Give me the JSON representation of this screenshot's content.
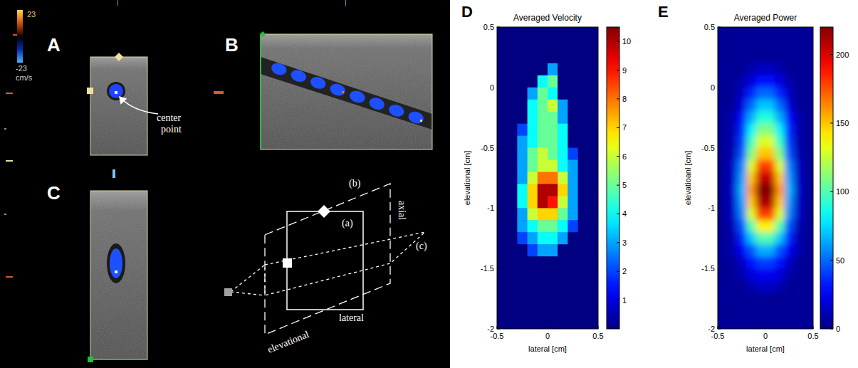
{
  "figure": {
    "color_scale": {
      "max": 23,
      "min": -23,
      "unit": "cm/s"
    },
    "panels": [
      {
        "letter": "A",
        "annotation": "center point"
      },
      {
        "letter": "B"
      },
      {
        "letter": "C"
      }
    ],
    "diagram": {
      "plane_labels": [
        "(a)",
        "(b)",
        "(c)"
      ],
      "axis_labels": [
        "axial",
        "lateral",
        "elevational"
      ]
    }
  },
  "chart_data": [
    {
      "type": "heatmap",
      "panel_label": "D",
      "title": "Averaged Velocity",
      "x_label": "lateral [cm]",
      "y_label": "elevational [cm]",
      "x": [
        -0.45,
        -0.35,
        -0.25,
        -0.15,
        -0.05,
        0.05,
        0.15,
        0.25,
        0.35,
        0.45
      ],
      "y": [
        0.45,
        0.35,
        0.25,
        0.15,
        0.05,
        -0.05,
        -0.15,
        -0.25,
        -0.35,
        -0.45,
        -0.55,
        -0.65,
        -0.75,
        -0.85,
        -0.95,
        -1.05,
        -1.15,
        -1.25,
        -1.35,
        -1.45,
        -1.55,
        -1.65,
        -1.75,
        -1.85,
        -1.95
      ],
      "cells": [
        [
          0,
          0,
          0,
          0,
          0,
          0,
          0,
          0,
          0,
          0
        ],
        [
          0,
          0,
          0,
          0,
          0,
          0,
          0,
          0,
          0,
          0
        ],
        [
          0,
          0,
          0,
          0,
          0,
          0,
          0,
          0,
          0,
          0
        ],
        [
          0,
          0,
          0,
          0,
          0,
          3,
          0,
          0,
          0,
          0
        ],
        [
          0,
          0,
          0,
          0,
          4,
          5,
          0,
          0,
          0,
          0
        ],
        [
          0,
          0,
          0,
          3,
          5,
          4,
          0,
          0,
          0,
          0
        ],
        [
          0,
          0,
          0,
          4,
          5,
          6,
          3,
          0,
          0,
          0
        ],
        [
          0,
          0,
          0,
          4,
          5,
          5,
          3,
          0,
          0,
          0
        ],
        [
          0,
          0,
          2,
          4,
          5,
          5,
          4,
          0,
          0,
          0
        ],
        [
          0,
          0,
          3,
          4,
          5,
          5,
          4,
          0,
          0,
          0
        ],
        [
          0,
          0,
          3,
          5,
          6,
          5,
          4,
          2,
          0,
          0
        ],
        [
          0,
          0,
          3,
          5,
          6,
          6,
          4,
          3,
          0,
          0
        ],
        [
          0,
          0,
          3,
          6,
          8,
          8,
          6,
          3,
          0,
          0
        ],
        [
          0,
          0,
          4,
          7,
          10,
          10,
          7,
          3,
          0,
          0
        ],
        [
          0,
          0,
          4,
          7,
          10,
          9,
          6,
          3,
          0,
          0
        ],
        [
          0,
          0,
          3,
          6,
          7,
          7,
          5,
          3,
          0,
          0
        ],
        [
          0,
          0,
          3,
          4,
          5,
          5,
          4,
          2,
          0,
          0
        ],
        [
          0,
          0,
          2,
          3,
          4,
          4,
          3,
          0,
          0,
          0
        ],
        [
          0,
          0,
          0,
          2,
          3,
          3,
          0,
          0,
          0,
          0
        ],
        [
          0,
          0,
          0,
          0,
          0,
          0,
          0,
          0,
          0,
          0
        ],
        [
          0,
          0,
          0,
          0,
          0,
          0,
          0,
          0,
          0,
          0
        ],
        [
          0,
          0,
          0,
          0,
          0,
          0,
          0,
          0,
          0,
          0
        ],
        [
          0,
          0,
          0,
          0,
          0,
          0,
          0,
          0,
          0,
          0
        ],
        [
          0,
          0,
          0,
          0,
          0,
          0,
          0,
          0,
          0,
          0
        ],
        [
          0,
          0,
          0,
          0,
          0,
          0,
          0,
          0,
          0,
          0
        ]
      ],
      "xlim": [
        -0.5,
        0.5
      ],
      "ylim": [
        -2,
        0.5
      ],
      "xticks": [
        -0.5,
        0,
        0.5
      ],
      "yticks": [
        -2,
        -1.5,
        -1,
        -0.5,
        0,
        0.5
      ],
      "colorbar": {
        "range": [
          0,
          10.5
        ],
        "ticks": [
          1,
          2,
          3,
          4,
          5,
          6,
          7,
          8,
          9,
          10
        ]
      }
    },
    {
      "type": "heatmap",
      "panel_label": "E",
      "title": "Averaged Power",
      "x_label": "lateral [cm]",
      "y_label": "elevatioanl [cm]",
      "x": [
        -0.45,
        -0.35,
        -0.25,
        -0.15,
        -0.05,
        0.05,
        0.15,
        0.25,
        0.35,
        0.45
      ],
      "y": [
        0.45,
        0.35,
        0.25,
        0.15,
        0.05,
        -0.05,
        -0.15,
        -0.25,
        -0.35,
        -0.45,
        -0.55,
        -0.65,
        -0.75,
        -0.85,
        -0.95,
        -1.05,
        -1.15,
        -1.25,
        -1.35,
        -1.45,
        -1.55,
        -1.65,
        -1.75,
        -1.85,
        -1.95
      ],
      "cells": [
        [
          5,
          5,
          5,
          5,
          5,
          5,
          5,
          5,
          5,
          5
        ],
        [
          5,
          5,
          5,
          5,
          5,
          5,
          5,
          5,
          5,
          5
        ],
        [
          5,
          5,
          5,
          5,
          5,
          5,
          5,
          5,
          5,
          5
        ],
        [
          5,
          5,
          5,
          10,
          15,
          15,
          10,
          5,
          5,
          5
        ],
        [
          5,
          5,
          10,
          20,
          30,
          30,
          20,
          10,
          5,
          5
        ],
        [
          5,
          5,
          15,
          35,
          50,
          50,
          35,
          15,
          5,
          5
        ],
        [
          5,
          5,
          20,
          50,
          70,
          70,
          50,
          20,
          5,
          5
        ],
        [
          5,
          10,
          30,
          65,
          90,
          90,
          65,
          30,
          10,
          5
        ],
        [
          5,
          10,
          35,
          80,
          110,
          110,
          80,
          35,
          10,
          5
        ],
        [
          5,
          10,
          40,
          95,
          130,
          130,
          95,
          40,
          10,
          5
        ],
        [
          5,
          10,
          45,
          110,
          150,
          150,
          110,
          45,
          10,
          5
        ],
        [
          5,
          15,
          55,
          130,
          180,
          180,
          130,
          55,
          15,
          5
        ],
        [
          5,
          15,
          60,
          150,
          205,
          205,
          150,
          60,
          15,
          5
        ],
        [
          5,
          15,
          65,
          160,
          220,
          220,
          160,
          65,
          15,
          5
        ],
        [
          5,
          15,
          60,
          150,
          210,
          210,
          150,
          60,
          15,
          5
        ],
        [
          5,
          15,
          55,
          130,
          180,
          180,
          130,
          55,
          15,
          5
        ],
        [
          5,
          10,
          45,
          100,
          140,
          140,
          100,
          45,
          10,
          5
        ],
        [
          5,
          10,
          35,
          70,
          100,
          100,
          70,
          35,
          10,
          5
        ],
        [
          5,
          10,
          25,
          45,
          65,
          65,
          45,
          25,
          10,
          5
        ],
        [
          5,
          5,
          15,
          30,
          40,
          40,
          30,
          15,
          5,
          5
        ],
        [
          5,
          5,
          10,
          20,
          25,
          25,
          20,
          10,
          5,
          5
        ],
        [
          5,
          5,
          5,
          10,
          15,
          15,
          10,
          5,
          5,
          5
        ],
        [
          5,
          5,
          5,
          5,
          5,
          5,
          5,
          5,
          5,
          5
        ],
        [
          5,
          5,
          5,
          5,
          5,
          5,
          5,
          5,
          5,
          5
        ],
        [
          5,
          5,
          5,
          5,
          5,
          5,
          5,
          5,
          5,
          5
        ]
      ],
      "xlim": [
        -0.5,
        0.5
      ],
      "ylim": [
        -2,
        0.5
      ],
      "xticks": [
        -0.5,
        0,
        0.5
      ],
      "yticks": [
        -2,
        -1.5,
        -1,
        -0.5,
        0,
        0.5
      ],
      "colorbar": {
        "range": [
          0,
          220
        ],
        "ticks": [
          0,
          50,
          100,
          150,
          200
        ]
      }
    }
  ]
}
